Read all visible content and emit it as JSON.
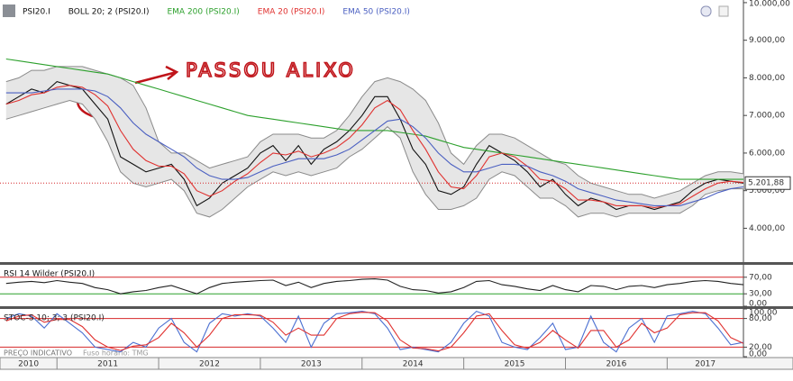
{
  "chart_data": [
    {
      "type": "line",
      "annotation": "PASSOU ALIXO",
      "x": [
        2010.5,
        2010.625,
        2010.75,
        2010.875,
        2011,
        2011.125,
        2011.25,
        2011.375,
        2011.5,
        2011.625,
        2011.75,
        2011.875,
        2012,
        2012.125,
        2012.25,
        2012.375,
        2012.5,
        2012.625,
        2012.75,
        2012.875,
        2013,
        2013.125,
        2013.25,
        2013.375,
        2013.5,
        2013.625,
        2013.75,
        2013.875,
        2014,
        2014.125,
        2014.25,
        2014.375,
        2014.5,
        2014.625,
        2014.75,
        2014.875,
        2015,
        2015.125,
        2015.25,
        2015.375,
        2015.5,
        2015.625,
        2015.75,
        2015.875,
        2016,
        2016.125,
        2016.25,
        2016.375,
        2016.5,
        2016.625,
        2016.75,
        2016.875,
        2017,
        2017.125,
        2017.25,
        2017.375,
        2017.5,
        2017.625,
        2017.75
      ],
      "xlim": [
        2010.44,
        2017.75
      ],
      "xticks": [
        2010,
        2011,
        2012,
        2013,
        2014,
        2015,
        2016,
        2017
      ],
      "ylim": [
        3100,
        10070
      ],
      "yticks": [
        {
          "value": 4000,
          "label": "4.000,00"
        },
        {
          "value": 5000,
          "label": "5.000,00"
        },
        {
          "value": 6000,
          "label": "6.000,00"
        },
        {
          "value": 7000,
          "label": "7.000,00"
        },
        {
          "value": 8000,
          "label": "8.000,00"
        },
        {
          "value": 9000,
          "label": "9.000,00"
        },
        {
          "value": 10000,
          "label": "10.000,00"
        }
      ],
      "last_price": {
        "value": 5201.88,
        "label": "5.201,88",
        "color": "#d62728"
      },
      "band": {
        "name": "BOLL 20; 2 (PSI20.I)",
        "color": "#8a8a8a",
        "fill": "#e6e6e6",
        "upper": [
          7900,
          8000,
          8200,
          8200,
          8300,
          8300,
          8300,
          8200,
          8100,
          8000,
          7800,
          7200,
          6300,
          6000,
          6000,
          5800,
          5600,
          5700,
          5800,
          5900,
          6300,
          6500,
          6500,
          6500,
          6400,
          6400,
          6600,
          7000,
          7500,
          7900,
          8000,
          7900,
          7700,
          7400,
          6800,
          6000,
          5700,
          6200,
          6500,
          6500,
          6400,
          6200,
          6000,
          5800,
          5700,
          5400,
          5200,
          5100,
          5000,
          4900,
          4900,
          4800,
          4900,
          5000,
          5200,
          5400,
          5500,
          5500,
          5450
        ],
        "lower": [
          6900,
          7000,
          7100,
          7200,
          7300,
          7400,
          7300,
          6900,
          6300,
          5500,
          5200,
          5100,
          5200,
          5300,
          5000,
          4400,
          4300,
          4500,
          4800,
          5100,
          5300,
          5500,
          5400,
          5500,
          5400,
          5500,
          5600,
          5900,
          6100,
          6400,
          6700,
          6400,
          5500,
          4900,
          4500,
          4500,
          4600,
          4800,
          5300,
          5500,
          5400,
          5100,
          4800,
          4800,
          4600,
          4300,
          4400,
          4400,
          4300,
          4400,
          4400,
          4400,
          4400,
          4400,
          4600,
          4900,
          5000,
          5050,
          5050
        ]
      },
      "series": [
        {
          "name": "PSI20.I",
          "color": "#111111",
          "values": [
            7300,
            7500,
            7700,
            7600,
            7900,
            7800,
            7700,
            7300,
            6900,
            5900,
            5700,
            5500,
            5600,
            5700,
            5300,
            4600,
            4800,
            5200,
            5400,
            5600,
            6000,
            6200,
            5800,
            6200,
            5700,
            6100,
            6300,
            6600,
            7000,
            7500,
            7500,
            6900,
            6100,
            5700,
            5000,
            4900,
            5100,
            5700,
            6200,
            6000,
            5800,
            5500,
            5100,
            5300,
            4900,
            4600,
            4800,
            4700,
            4500,
            4600,
            4600,
            4500,
            4600,
            4700,
            5000,
            5200,
            5300,
            5250,
            5200
          ]
        },
        {
          "name": "EMA 200 (PSI20.I)",
          "color": "#2ca02c",
          "values": [
            8500,
            8450,
            8400,
            8350,
            8300,
            8250,
            8200,
            8150,
            8100,
            8000,
            7900,
            7800,
            7700,
            7600,
            7500,
            7400,
            7300,
            7200,
            7100,
            7000,
            6950,
            6900,
            6850,
            6800,
            6750,
            6700,
            6650,
            6600,
            6600,
            6600,
            6600,
            6550,
            6500,
            6450,
            6350,
            6250,
            6150,
            6100,
            6050,
            6000,
            5950,
            5900,
            5850,
            5800,
            5750,
            5700,
            5650,
            5600,
            5550,
            5500,
            5450,
            5400,
            5350,
            5300,
            5300,
            5300,
            5300,
            5300,
            5300
          ]
        },
        {
          "name": "EMA 20 (PSI20.I)",
          "color": "#e0312f",
          "values": [
            7300,
            7400,
            7550,
            7600,
            7750,
            7800,
            7750,
            7550,
            7250,
            6600,
            6100,
            5800,
            5650,
            5650,
            5450,
            5000,
            4850,
            5000,
            5250,
            5450,
            5750,
            6000,
            5950,
            6050,
            5900,
            6000,
            6150,
            6400,
            6750,
            7200,
            7400,
            7150,
            6600,
            6100,
            5500,
            5100,
            5050,
            5400,
            5900,
            6000,
            5900,
            5650,
            5300,
            5250,
            5050,
            4750,
            4750,
            4700,
            4600,
            4600,
            4600,
            4550,
            4600,
            4650,
            4850,
            5050,
            5200,
            5250,
            5220
          ]
        },
        {
          "name": "EMA 50 (PSI20.I)",
          "color": "#4a5fc1",
          "values": [
            7600,
            7600,
            7600,
            7650,
            7700,
            7700,
            7700,
            7650,
            7500,
            7200,
            6800,
            6500,
            6300,
            6100,
            5900,
            5600,
            5400,
            5300,
            5300,
            5350,
            5500,
            5650,
            5750,
            5850,
            5850,
            5850,
            5950,
            6100,
            6350,
            6600,
            6850,
            6900,
            6700,
            6400,
            6000,
            5700,
            5500,
            5500,
            5600,
            5700,
            5700,
            5650,
            5500,
            5400,
            5250,
            5050,
            4950,
            4850,
            4750,
            4700,
            4650,
            4600,
            4600,
            4600,
            4700,
            4800,
            4950,
            5050,
            5100
          ]
        }
      ]
    },
    {
      "type": "line",
      "x": [
        2010.5,
        2010.625,
        2010.75,
        2010.875,
        2011,
        2011.125,
        2011.25,
        2011.375,
        2011.5,
        2011.625,
        2011.75,
        2011.875,
        2012,
        2012.125,
        2012.25,
        2012.375,
        2012.5,
        2012.625,
        2012.75,
        2012.875,
        2013,
        2013.125,
        2013.25,
        2013.375,
        2013.5,
        2013.625,
        2013.75,
        2013.875,
        2014,
        2014.125,
        2014.25,
        2014.375,
        2014.5,
        2014.625,
        2014.75,
        2014.875,
        2015,
        2015.125,
        2015.25,
        2015.375,
        2015.5,
        2015.625,
        2015.75,
        2015.875,
        2016,
        2016.125,
        2016.25,
        2016.375,
        2016.5,
        2016.625,
        2016.75,
        2016.875,
        2017,
        2017.125,
        2017.25,
        2017.375,
        2017.5,
        2017.625,
        2017.75
      ],
      "xlim": [
        2010.44,
        2017.75
      ],
      "ylim": [
        0,
        100
      ],
      "yticks": [
        {
          "value": 0,
          "label": "0,00"
        },
        {
          "value": 30,
          "label": "30,00"
        },
        {
          "value": 70,
          "label": "70,00"
        }
      ],
      "levels": [
        {
          "value": 70,
          "color": "#d62728"
        },
        {
          "value": 30,
          "color": "#2ca02c"
        }
      ],
      "series": [
        {
          "name": "RSI 14 Wilder (PSI20.I)",
          "color": "#222222",
          "values": [
            55,
            58,
            60,
            57,
            62,
            58,
            55,
            45,
            40,
            30,
            35,
            38,
            45,
            50,
            40,
            30,
            45,
            55,
            58,
            60,
            62,
            63,
            50,
            58,
            45,
            55,
            60,
            62,
            65,
            66,
            63,
            48,
            40,
            38,
            32,
            35,
            45,
            60,
            62,
            52,
            48,
            42,
            38,
            50,
            40,
            35,
            50,
            48,
            40,
            48,
            50,
            45,
            52,
            55,
            60,
            62,
            60,
            55,
            52
          ]
        }
      ]
    },
    {
      "type": "line",
      "title": "STOC-S 10; 3; 3 (PSI20.I)",
      "x": [
        2010.5,
        2010.625,
        2010.75,
        2010.875,
        2011,
        2011.125,
        2011.25,
        2011.375,
        2011.5,
        2011.625,
        2011.75,
        2011.875,
        2012,
        2012.125,
        2012.25,
        2012.375,
        2012.5,
        2012.625,
        2012.75,
        2012.875,
        2013,
        2013.125,
        2013.25,
        2013.375,
        2013.5,
        2013.625,
        2013.75,
        2013.875,
        2014,
        2014.125,
        2014.25,
        2014.375,
        2014.5,
        2014.625,
        2014.75,
        2014.875,
        2015,
        2015.125,
        2015.25,
        2015.375,
        2015.5,
        2015.625,
        2015.75,
        2015.875,
        2016,
        2016.125,
        2016.25,
        2016.375,
        2016.5,
        2016.625,
        2016.75,
        2016.875,
        2017,
        2017.125,
        2017.25,
        2017.375,
        2017.5,
        2017.625,
        2017.75
      ],
      "xlim": [
        2010.44,
        2017.75
      ],
      "ylim": [
        0,
        100
      ],
      "yticks": [
        {
          "value": 0,
          "label": "0,00"
        },
        {
          "value": 20,
          "label": "20,00"
        },
        {
          "value": 80,
          "label": "80,00"
        },
        {
          "value": 100,
          "label": "100,00"
        }
      ],
      "levels": [
        {
          "value": 80,
          "color": "#d62728"
        },
        {
          "value": 20,
          "color": "#d62728"
        }
      ],
      "series": [
        {
          "color": "#4a6fd1",
          "values": [
            80,
            90,
            85,
            60,
            90,
            70,
            50,
            20,
            15,
            10,
            30,
            20,
            60,
            80,
            30,
            10,
            70,
            90,
            85,
            90,
            85,
            60,
            30,
            85,
            20,
            70,
            90,
            92,
            95,
            90,
            60,
            15,
            20,
            15,
            10,
            30,
            70,
            95,
            85,
            30,
            20,
            15,
            40,
            70,
            15,
            20,
            85,
            30,
            10,
            60,
            80,
            30,
            85,
            90,
            95,
            90,
            60,
            25,
            30
          ]
        },
        {
          "color": "#e0312f",
          "values": [
            75,
            85,
            88,
            72,
            78,
            78,
            63,
            35,
            20,
            13,
            22,
            25,
            40,
            70,
            50,
            20,
            45,
            80,
            88,
            88,
            87,
            72,
            45,
            60,
            45,
            45,
            80,
            90,
            93,
            92,
            75,
            35,
            18,
            17,
            12,
            20,
            50,
            85,
            90,
            55,
            25,
            18,
            30,
            55,
            35,
            18,
            55,
            55,
            20,
            35,
            70,
            50,
            60,
            88,
            92,
            92,
            75,
            40,
            28
          ]
        }
      ]
    }
  ],
  "footer": {
    "note": "PREÇO INDICATIVO",
    "timezone": "Fuso horário: TMG"
  }
}
